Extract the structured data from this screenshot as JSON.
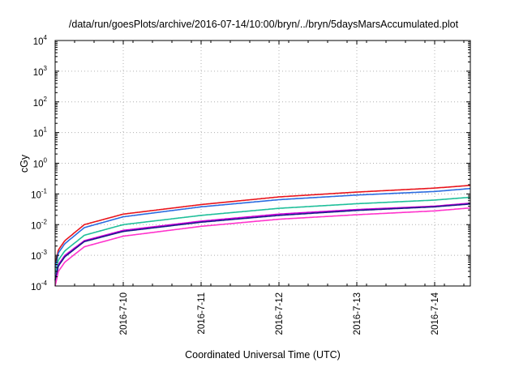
{
  "chart_data": {
    "type": "line",
    "title": "/data/run/goesPlots/archive/2016-07-14/10:00/bryn/../bryn/5daysMarsAccumulated.plot",
    "xlabel": "Coordinated Universal Time (UTC)",
    "ylabel": "cGy",
    "y_scale": "log",
    "ylim": [
      0.0001,
      10000
    ],
    "y_ticks": [
      {
        "base": "10",
        "exp": "-4"
      },
      {
        "base": "10",
        "exp": "-3"
      },
      {
        "base": "10",
        "exp": "-2"
      },
      {
        "base": "10",
        "exp": "-1"
      },
      {
        "base": "10",
        "exp": "0"
      },
      {
        "base": "10",
        "exp": "1"
      },
      {
        "base": "10",
        "exp": "2"
      },
      {
        "base": "10",
        "exp": "3"
      },
      {
        "base": "10",
        "exp": "4"
      }
    ],
    "xlim": [
      "2016-07-09 03:00",
      "2016-07-14 11:00"
    ],
    "x_ticks": [
      "2016-7-10",
      "2016-7-11",
      "2016-7-12",
      "2016-7-13",
      "2016-7-14"
    ],
    "grid": true,
    "legend": "none",
    "series": [
      {
        "color": "#e8141c",
        "x": [
          "2016-07-09 03:00",
          "2016-07-09 04:00",
          "2016-07-09 06:00",
          "2016-07-09 12:00",
          "2016-07-10 00:00",
          "2016-07-11 00:00",
          "2016-07-12 00:00",
          "2016-07-13 00:00",
          "2016-07-14 00:00",
          "2016-07-14 11:00"
        ],
        "y": [
          0.0005,
          0.0015,
          0.003,
          0.01,
          0.022,
          0.045,
          0.08,
          0.115,
          0.155,
          0.19
        ]
      },
      {
        "color": "#2b6be0",
        "x": [
          "2016-07-09 03:00",
          "2016-07-09 04:00",
          "2016-07-09 06:00",
          "2016-07-09 12:00",
          "2016-07-10 00:00",
          "2016-07-11 00:00",
          "2016-07-12 00:00",
          "2016-07-13 00:00",
          "2016-07-14 00:00",
          "2016-07-14 11:00"
        ],
        "y": [
          0.0004,
          0.0012,
          0.0024,
          0.008,
          0.018,
          0.038,
          0.065,
          0.092,
          0.12,
          0.15
        ]
      },
      {
        "color": "#1fbf9a",
        "x": [
          "2016-07-09 03:00",
          "2016-07-09 04:00",
          "2016-07-09 06:00",
          "2016-07-09 12:00",
          "2016-07-10 00:00",
          "2016-07-11 00:00",
          "2016-07-12 00:00",
          "2016-07-13 00:00",
          "2016-07-14 00:00",
          "2016-07-14 11:00"
        ],
        "y": [
          0.00025,
          0.0007,
          0.0014,
          0.0045,
          0.01,
          0.02,
          0.034,
          0.048,
          0.063,
          0.078
        ]
      },
      {
        "color": "#d000d8",
        "x": [
          "2016-07-09 03:00",
          "2016-07-09 04:00",
          "2016-07-09 06:00",
          "2016-07-09 12:00",
          "2016-07-10 00:00",
          "2016-07-11 00:00",
          "2016-07-12 00:00",
          "2016-07-13 00:00",
          "2016-07-14 00:00",
          "2016-07-14 11:00"
        ],
        "y": [
          0.00016,
          0.0005,
          0.001,
          0.003,
          0.0065,
          0.013,
          0.022,
          0.031,
          0.04,
          0.05
        ]
      },
      {
        "color": "#1a1a8c",
        "x": [
          "2016-07-09 03:00",
          "2016-07-09 04:00",
          "2016-07-09 06:00",
          "2016-07-09 12:00",
          "2016-07-10 00:00",
          "2016-07-11 00:00",
          "2016-07-12 00:00",
          "2016-07-13 00:00",
          "2016-07-14 00:00",
          "2016-07-14 11:00"
        ],
        "y": [
          0.00015,
          0.00045,
          0.0009,
          0.0028,
          0.006,
          0.012,
          0.02,
          0.029,
          0.038,
          0.047
        ]
      },
      {
        "color": "#ff33cc",
        "x": [
          "2016-07-09 03:00",
          "2016-07-09 04:00",
          "2016-07-09 06:00",
          "2016-07-09 12:00",
          "2016-07-10 00:00",
          "2016-07-11 00:00",
          "2016-07-12 00:00",
          "2016-07-13 00:00",
          "2016-07-14 00:00",
          "2016-07-14 11:00"
        ],
        "y": [
          0.0001,
          0.0003,
          0.0006,
          0.0019,
          0.0042,
          0.0088,
          0.015,
          0.021,
          0.028,
          0.035
        ]
      }
    ]
  }
}
